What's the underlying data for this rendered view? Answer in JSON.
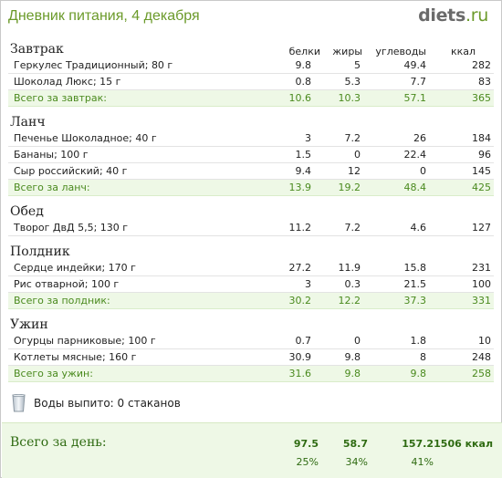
{
  "header": {
    "title": "Дневник питания, 4 декабря",
    "logo_main": "diets",
    "logo_dot": ".",
    "logo_tld": "ru"
  },
  "columns": {
    "proteins": "белки",
    "fats": "жиры",
    "carbs": "углеводы",
    "kcal": "ккал"
  },
  "meals": [
    {
      "title": "Завтрак",
      "items": [
        {
          "name": "Геркулес Традиционный; 80 г",
          "proteins": "9.8",
          "fats": "5",
          "carbs": "49.4",
          "kcal": "282"
        },
        {
          "name": "Шоколад Люкс; 15 г",
          "proteins": "0.8",
          "fats": "5.3",
          "carbs": "7.7",
          "kcal": "83"
        }
      ],
      "total": {
        "label": "Всего за завтрак:",
        "proteins": "10.6",
        "fats": "10.3",
        "carbs": "57.1",
        "kcal": "365"
      }
    },
    {
      "title": "Ланч",
      "items": [
        {
          "name": "Печенье Шоколадное; 40 г",
          "proteins": "3",
          "fats": "7.2",
          "carbs": "26",
          "kcal": "184"
        },
        {
          "name": "Бананы; 100 г",
          "proteins": "1.5",
          "fats": "0",
          "carbs": "22.4",
          "kcal": "96"
        },
        {
          "name": "Сыр российский; 40 г",
          "proteins": "9.4",
          "fats": "12",
          "carbs": "0",
          "kcal": "145"
        }
      ],
      "total": {
        "label": "Всего за ланч:",
        "proteins": "13.9",
        "fats": "19.2",
        "carbs": "48.4",
        "kcal": "425"
      }
    },
    {
      "title": "Обед",
      "items": [
        {
          "name": "Творог ДвД 5,5; 130 г",
          "proteins": "11.2",
          "fats": "7.2",
          "carbs": "4.6",
          "kcal": "127"
        }
      ],
      "total": null
    },
    {
      "title": "Полдник",
      "items": [
        {
          "name": "Сердце индейки; 170 г",
          "proteins": "27.2",
          "fats": "11.9",
          "carbs": "15.8",
          "kcal": "231"
        },
        {
          "name": "Рис отварной; 100 г",
          "proteins": "3",
          "fats": "0.3",
          "carbs": "21.5",
          "kcal": "100"
        }
      ],
      "total": {
        "label": "Всего за полдник:",
        "proteins": "30.2",
        "fats": "12.2",
        "carbs": "37.3",
        "kcal": "331"
      }
    },
    {
      "title": "Ужин",
      "items": [
        {
          "name": "Огурцы парниковые; 100 г",
          "proteins": "0.7",
          "fats": "0",
          "carbs": "1.8",
          "kcal": "10"
        },
        {
          "name": "Котлеты мясные; 160 г",
          "proteins": "30.9",
          "fats": "9.8",
          "carbs": "8",
          "kcal": "248"
        }
      ],
      "total": {
        "label": "Всего за ужин:",
        "proteins": "31.6",
        "fats": "9.8",
        "carbs": "9.8",
        "kcal": "258"
      }
    }
  ],
  "water": {
    "icon": "glass-icon",
    "text": "Воды выпито: 0 стаканов"
  },
  "day_total": {
    "label": "Всего за день:",
    "proteins": "97.5",
    "fats": "58.7",
    "carbs": "157.2",
    "kcal": "1506 ккал",
    "proteins_pct": "25%",
    "fats_pct": "34%",
    "carbs_pct": "41%"
  },
  "colors": {
    "brand_green": "#6b9a2a",
    "total_green": "#4a8a1e",
    "total_bg": "#eef8e6"
  }
}
